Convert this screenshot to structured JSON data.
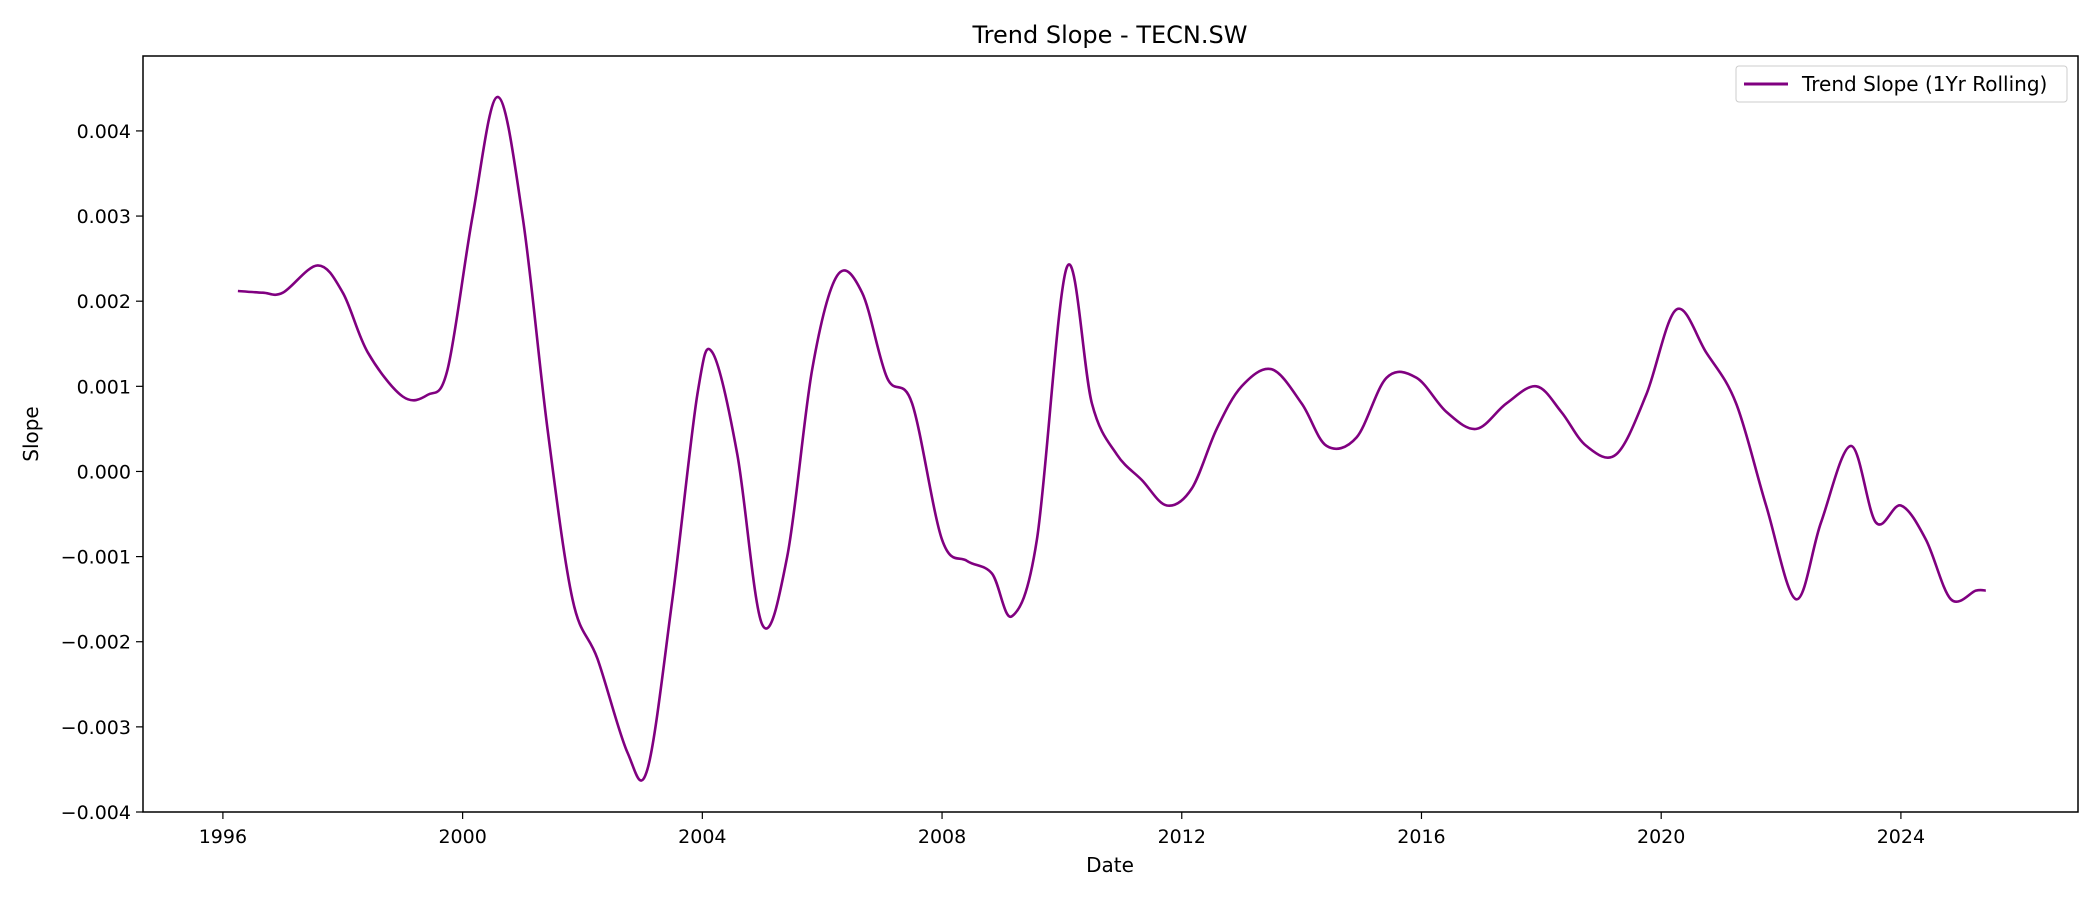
{
  "chart_data": {
    "type": "line",
    "title": "Trend Slope - TECN.SW",
    "xlabel": "Date",
    "ylabel": "Slope",
    "x_range": [
      "1994-09-01",
      "2026-12-15"
    ],
    "ylim": [
      -0.004,
      0.00488
    ],
    "x_ticks": [
      "1996",
      "2000",
      "2004",
      "2008",
      "2012",
      "2016",
      "2020",
      "2024"
    ],
    "y_ticks": [
      "0.004",
      "0.003",
      "0.002",
      "0.001",
      "0.000",
      "−0.001",
      "−0.002",
      "−0.003",
      "−0.004"
    ],
    "y_tick_values": [
      0.004,
      0.003,
      0.002,
      0.001,
      0.0,
      -0.001,
      -0.002,
      -0.003,
      -0.004
    ],
    "grid": false,
    "legend_position": "top-right",
    "colors": {
      "series": "#800080",
      "axes": "#000000"
    },
    "series": [
      {
        "name": "Trend Slope (1Yr Rolling)",
        "x": [
          "1996-04",
          "1996-09",
          "1997-01",
          "1997-08",
          "1998-01",
          "1998-06",
          "1999-01",
          "1999-06",
          "1999-10",
          "2000-03",
          "2000-08",
          "2001-01",
          "2001-06",
          "2001-11",
          "2002-04",
          "2002-10",
          "2003-02",
          "2003-07",
          "2003-12",
          "2004-03",
          "2004-08",
          "2005-01",
          "2005-06",
          "2005-11",
          "2006-04",
          "2006-09",
          "2007-02",
          "2007-07",
          "2008-01",
          "2008-06",
          "2008-11",
          "2009-03",
          "2009-08",
          "2010-02",
          "2010-07",
          "2010-12",
          "2011-05",
          "2011-10",
          "2012-03",
          "2012-08",
          "2013-01",
          "2013-07",
          "2014-01",
          "2014-06",
          "2014-12",
          "2015-06",
          "2015-12",
          "2016-06",
          "2016-12",
          "2017-06",
          "2017-12",
          "2018-05",
          "2018-10",
          "2019-04",
          "2019-10",
          "2020-04",
          "2020-10",
          "2021-04",
          "2021-10",
          "2022-04",
          "2022-09",
          "2023-03",
          "2023-08",
          "2024-01",
          "2024-06",
          "2024-11",
          "2025-04",
          "2025-06"
        ],
        "y": [
          0.00212,
          0.0021,
          0.0021,
          0.00242,
          0.0021,
          0.0014,
          0.00088,
          0.0009,
          0.0012,
          0.003,
          0.0044,
          0.003,
          0.0005,
          -0.0015,
          -0.0022,
          -0.0033,
          -0.0035,
          -0.0015,
          0.0009,
          0.0014,
          0.0002,
          -0.0018,
          -0.001,
          0.0012,
          0.0023,
          0.0021,
          0.0011,
          0.0008,
          -0.0008,
          -0.00105,
          -0.0012,
          -0.0017,
          -0.0008,
          0.0024,
          0.0008,
          0.0002,
          -0.0001,
          -0.0004,
          -0.0002,
          0.0005,
          0.001,
          0.0012,
          0.0008,
          0.0003,
          0.0004,
          0.0011,
          0.0011,
          0.0007,
          0.0005,
          0.0008,
          0.001,
          0.0007,
          0.0003,
          0.0002,
          0.0009,
          0.0019,
          0.0014,
          0.0008,
          -0.0004,
          -0.0015,
          -0.0006,
          0.0003,
          -0.0006,
          -0.0004,
          -0.0008,
          -0.0015,
          -0.0014,
          -0.0014
        ]
      }
    ]
  }
}
